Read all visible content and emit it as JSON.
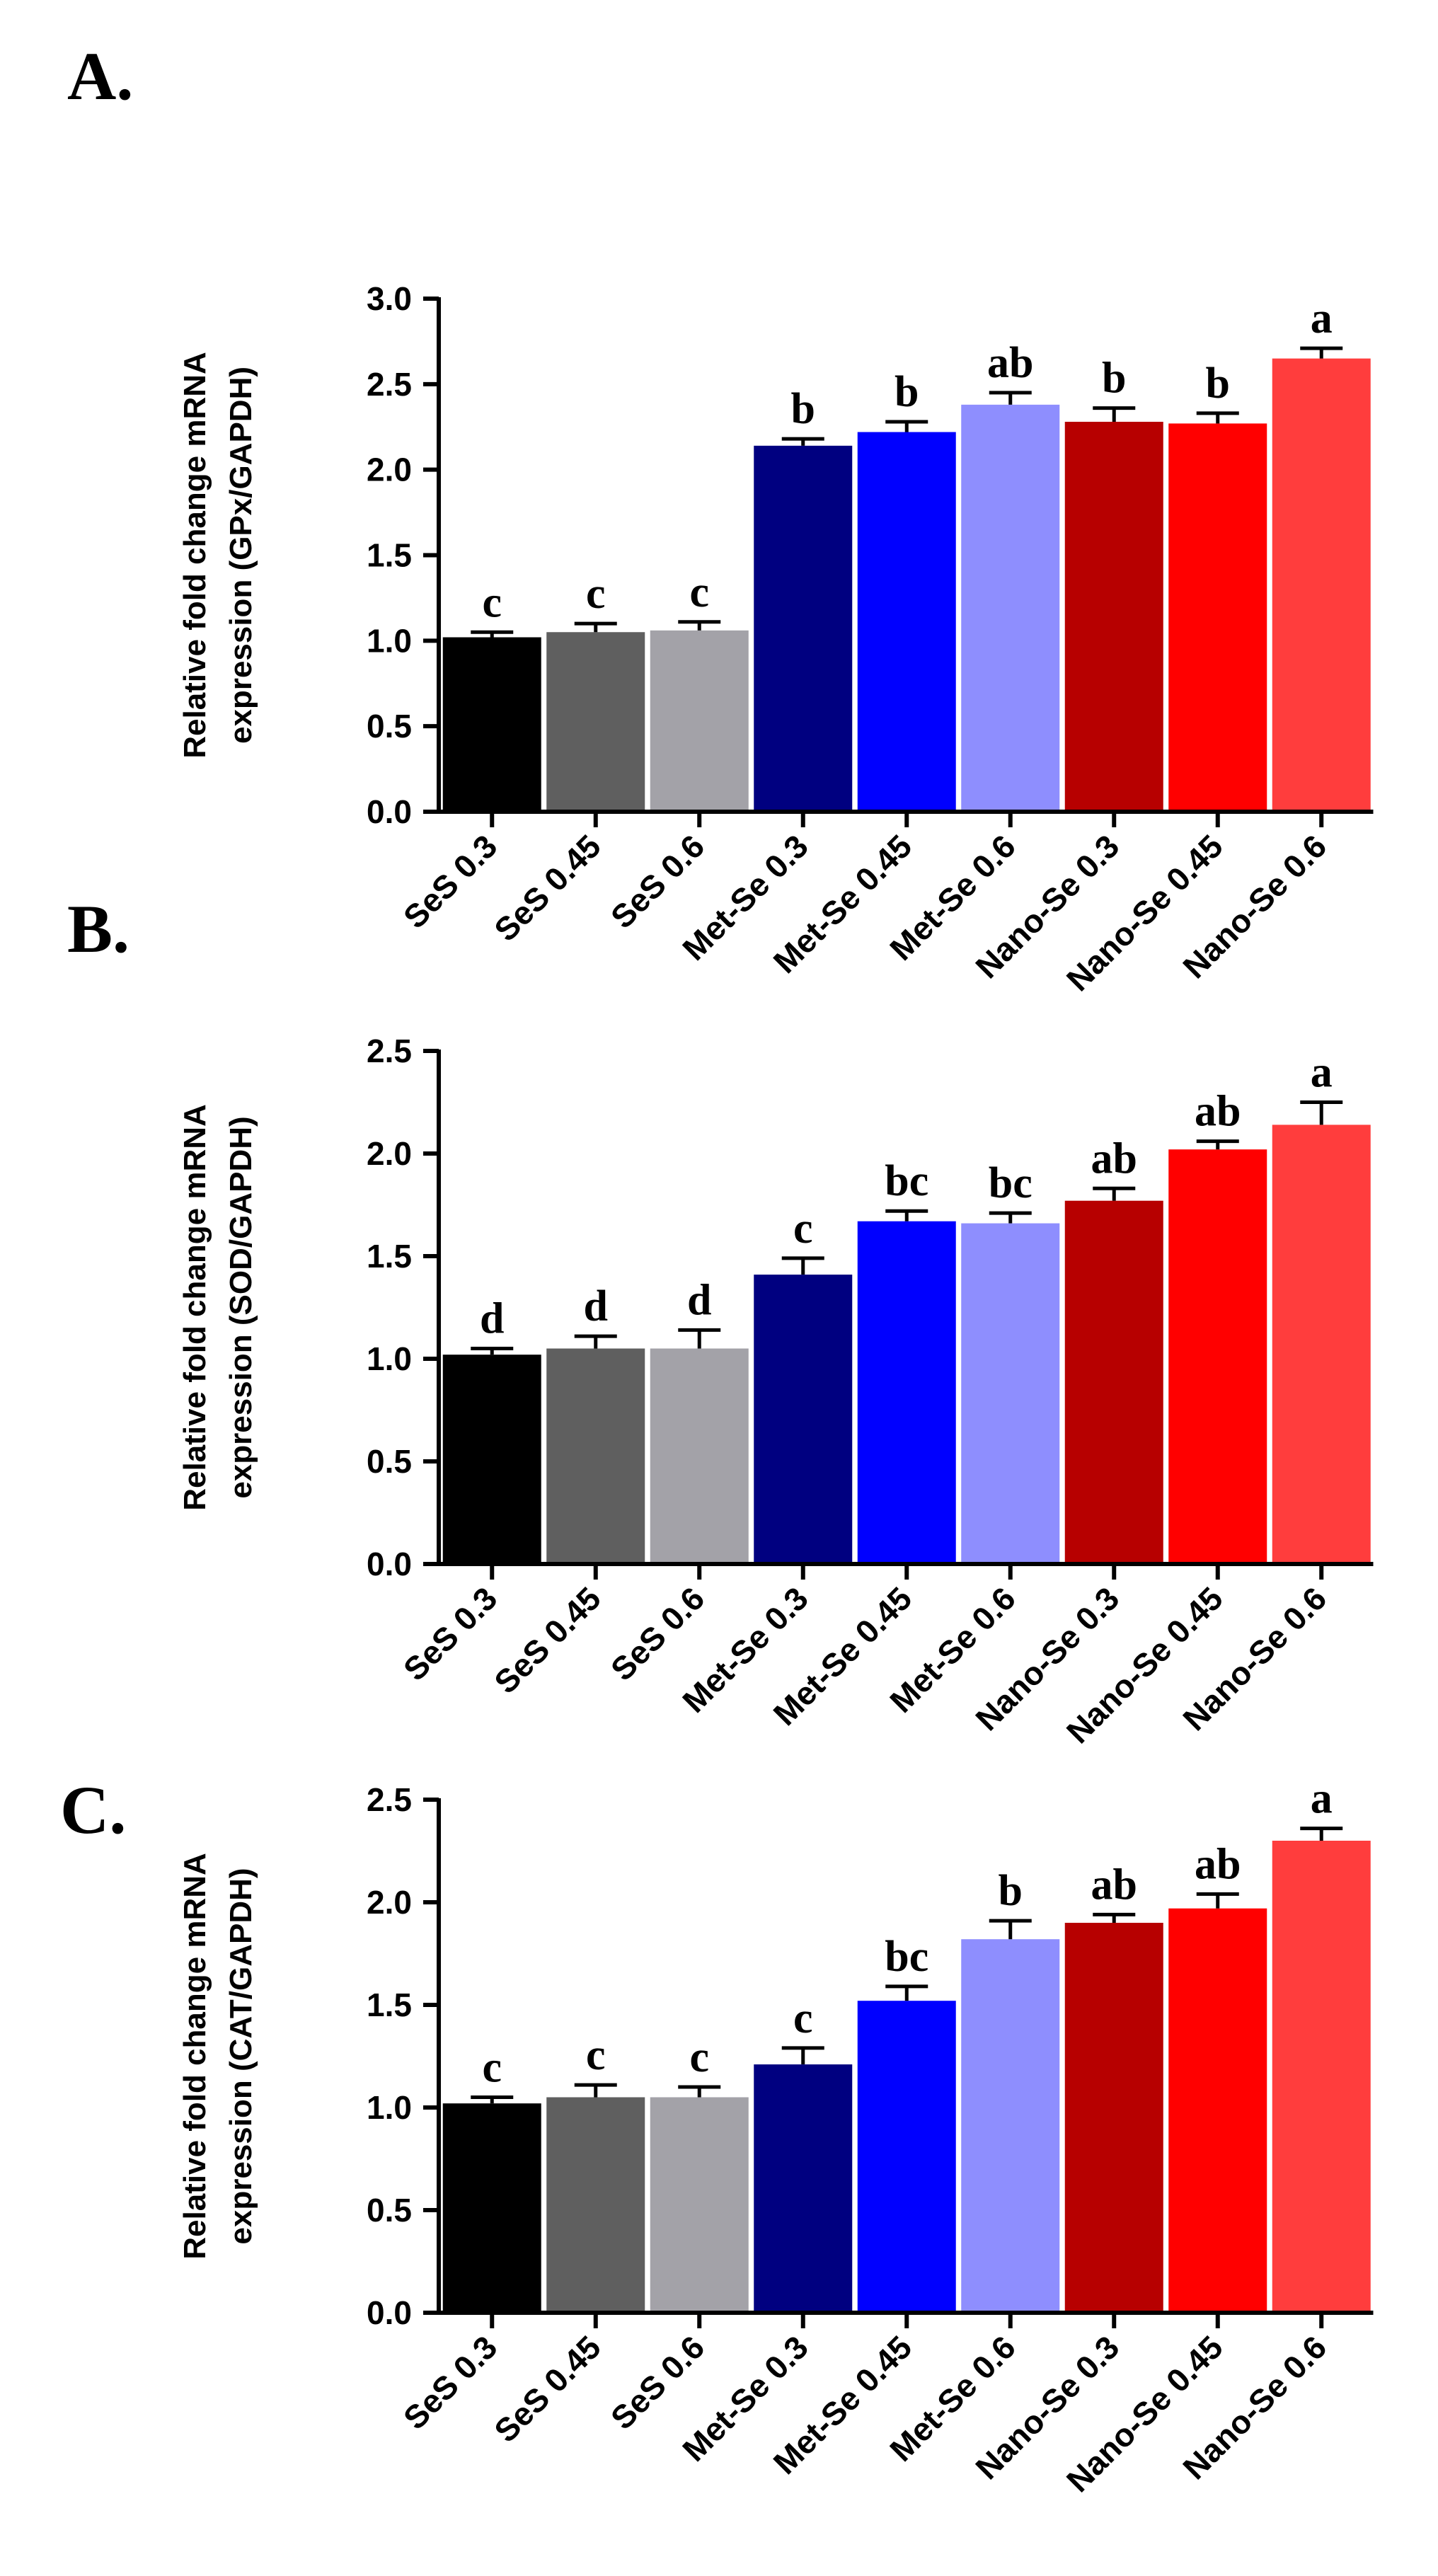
{
  "chart_data": [
    {
      "panel": "A.",
      "type": "bar",
      "ylabel_line1": "Relative fold change mRNA",
      "ylabel_line2": "expression (GPx/GAPDH)",
      "ylim": [
        0,
        3.0
      ],
      "yticks": [
        "0.0",
        "0.5",
        "1.0",
        "1.5",
        "2.0",
        "2.5",
        "3.0"
      ],
      "categories": [
        "SeS 0.3",
        "SeS 0.45",
        "SeS 0.6",
        "Met-Se 0.3",
        "Met-Se 0.45",
        "Met-Se 0.6",
        "Nano-Se 0.3",
        "Nano-Se 0.45",
        "Nano-Se 0.6"
      ],
      "values": [
        1.02,
        1.05,
        1.06,
        2.14,
        2.22,
        2.38,
        2.28,
        2.27,
        2.65
      ],
      "errors": [
        0.03,
        0.05,
        0.05,
        0.04,
        0.06,
        0.07,
        0.08,
        0.06,
        0.06
      ],
      "letters": [
        "c",
        "c",
        "c",
        "b",
        "b",
        "ab",
        "b",
        "b",
        "a"
      ],
      "colors": [
        "#000000",
        "#5f5f5f",
        "#a3a2a8",
        "#000080",
        "#0000ff",
        "#8e8efe",
        "#b70000",
        "#ff0000",
        "#ff3d3d"
      ]
    },
    {
      "panel": "B.",
      "type": "bar",
      "ylabel_line1": "Relative fold change mRNA",
      "ylabel_line2": "expression (SOD/GAPDH)",
      "ylim": [
        0,
        2.5
      ],
      "yticks": [
        "0.0",
        "0.5",
        "1.0",
        "1.5",
        "2.0",
        "2.5"
      ],
      "categories": [
        "SeS 0.3",
        "SeS 0.45",
        "SeS 0.6",
        "Met-Se 0.3",
        "Met-Se 0.45",
        "Met-Se 0.6",
        "Nano-Se 0.3",
        "Nano-Se 0.45",
        "Nano-Se 0.6"
      ],
      "values": [
        1.02,
        1.05,
        1.05,
        1.41,
        1.67,
        1.66,
        1.77,
        2.02,
        2.14
      ],
      "errors": [
        0.03,
        0.06,
        0.09,
        0.08,
        0.05,
        0.05,
        0.06,
        0.04,
        0.11
      ],
      "letters": [
        "d",
        "d",
        "d",
        "c",
        "bc",
        "bc",
        "ab",
        "ab",
        "a"
      ],
      "colors": [
        "#000000",
        "#5f5f5f",
        "#a3a2a8",
        "#000080",
        "#0000ff",
        "#8e8efe",
        "#b70000",
        "#ff0000",
        "#ff3d3d"
      ]
    },
    {
      "panel": "C.",
      "type": "bar",
      "ylabel_line1": "Relative fold change mRNA",
      "ylabel_line2": "expression (CAT/GAPDH)",
      "ylim": [
        0,
        2.5
      ],
      "yticks": [
        "0.0",
        "0.5",
        "1.0",
        "1.5",
        "2.0",
        "2.5"
      ],
      "categories": [
        "SeS 0.3",
        "SeS 0.45",
        "SeS 0.6",
        "Met-Se 0.3",
        "Met-Se 0.45",
        "Met-Se 0.6",
        "Nano-Se 0.3",
        "Nano-Se 0.45",
        "Nano-Se 0.6"
      ],
      "values": [
        1.02,
        1.05,
        1.05,
        1.21,
        1.52,
        1.82,
        1.9,
        1.97,
        2.3
      ],
      "errors": [
        0.03,
        0.06,
        0.05,
        0.08,
        0.07,
        0.09,
        0.04,
        0.07,
        0.06
      ],
      "letters": [
        "c",
        "c",
        "c",
        "c",
        "bc",
        "b",
        "ab",
        "ab",
        "a"
      ],
      "colors": [
        "#000000",
        "#5f5f5f",
        "#a3a2a8",
        "#000080",
        "#0000ff",
        "#8e8efe",
        "#b70000",
        "#ff0000",
        "#ff3d3d"
      ]
    }
  ]
}
